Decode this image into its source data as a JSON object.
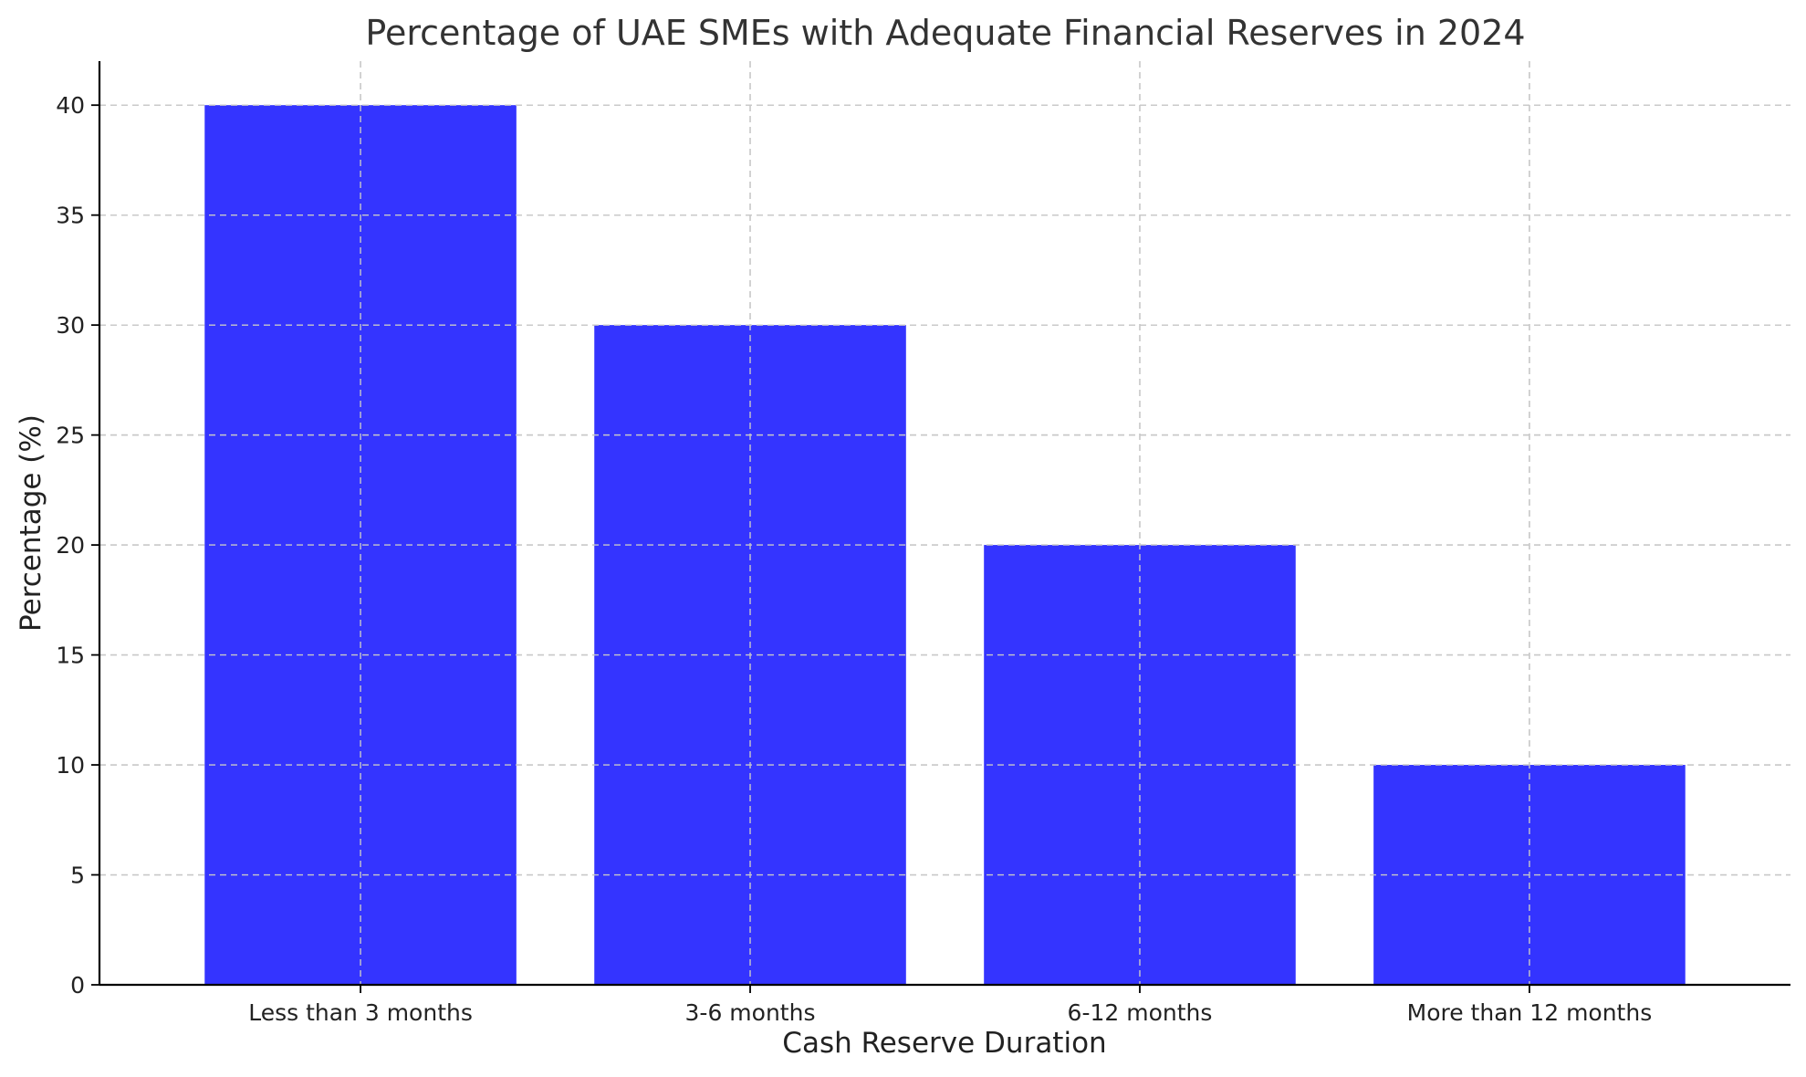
{
  "chart_data": {
    "type": "bar",
    "title": "Percentage of UAE SMEs with Adequate Financial Reserves in 2024",
    "xlabel": "Cash Reserve Duration",
    "ylabel": "Percentage (%)",
    "categories": [
      "Less than 3 months",
      "3-6 months",
      "6-12 months",
      "More than 12 months"
    ],
    "values": [
      40,
      30,
      20,
      10
    ],
    "ylim": [
      0,
      42
    ],
    "yticks": [
      0,
      5,
      10,
      15,
      20,
      25,
      30,
      35,
      40
    ],
    "grid": true,
    "bar_color": "#3434ff"
  }
}
